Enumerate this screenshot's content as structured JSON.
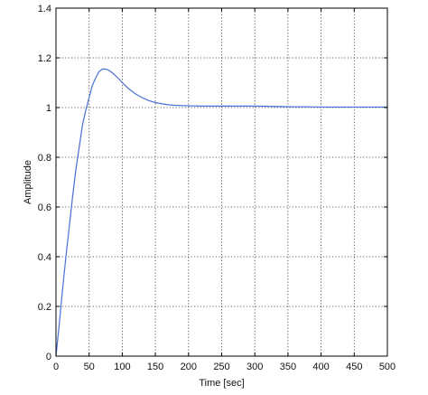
{
  "chart_data": {
    "type": "line",
    "title": "",
    "xlabel": "Time [sec]",
    "ylabel": "Amplitude",
    "xlim": [
      0,
      500
    ],
    "ylim": [
      0,
      1.4
    ],
    "xticks": [
      0,
      50,
      100,
      150,
      200,
      250,
      300,
      350,
      400,
      450,
      500
    ],
    "yticks": [
      0,
      0.2,
      0.4,
      0.6,
      0.8,
      1,
      1.2,
      1.4
    ],
    "xtick_labels": [
      "0",
      "50",
      "100",
      "150",
      "200",
      "250",
      "300",
      "350",
      "400",
      "450",
      "500"
    ],
    "ytick_labels": [
      "0",
      "0.2",
      "0.4",
      "0.6",
      "0.8",
      "1",
      "1.2",
      "1.4"
    ],
    "grid": true,
    "colors": {
      "line": "#4a6fd6",
      "grid": "#333333",
      "frame": "#000000"
    },
    "series": [
      {
        "x": [
          0,
          5,
          10,
          15,
          20,
          25,
          30,
          35,
          40,
          45,
          50,
          55,
          60,
          65,
          70,
          75,
          80,
          85,
          90,
          95,
          100,
          110,
          120,
          130,
          140,
          150,
          160,
          170,
          180,
          190,
          200,
          220,
          240,
          260,
          280,
          300,
          320,
          340,
          360,
          380,
          400,
          450,
          500
        ],
        "values": [
          0,
          0.13,
          0.27,
          0.4,
          0.52,
          0.64,
          0.75,
          0.84,
          0.93,
          0.99,
          1.04,
          1.09,
          1.12,
          1.145,
          1.155,
          1.155,
          1.15,
          1.14,
          1.128,
          1.115,
          1.1,
          1.075,
          1.055,
          1.04,
          1.028,
          1.02,
          1.015,
          1.011,
          1.009,
          1.008,
          1.007,
          1.006,
          1.006,
          1.006,
          1.006,
          1.006,
          1.005,
          1.004,
          1.003,
          1.003,
          1.002,
          1.002,
          1.002
        ]
      }
    ]
  }
}
